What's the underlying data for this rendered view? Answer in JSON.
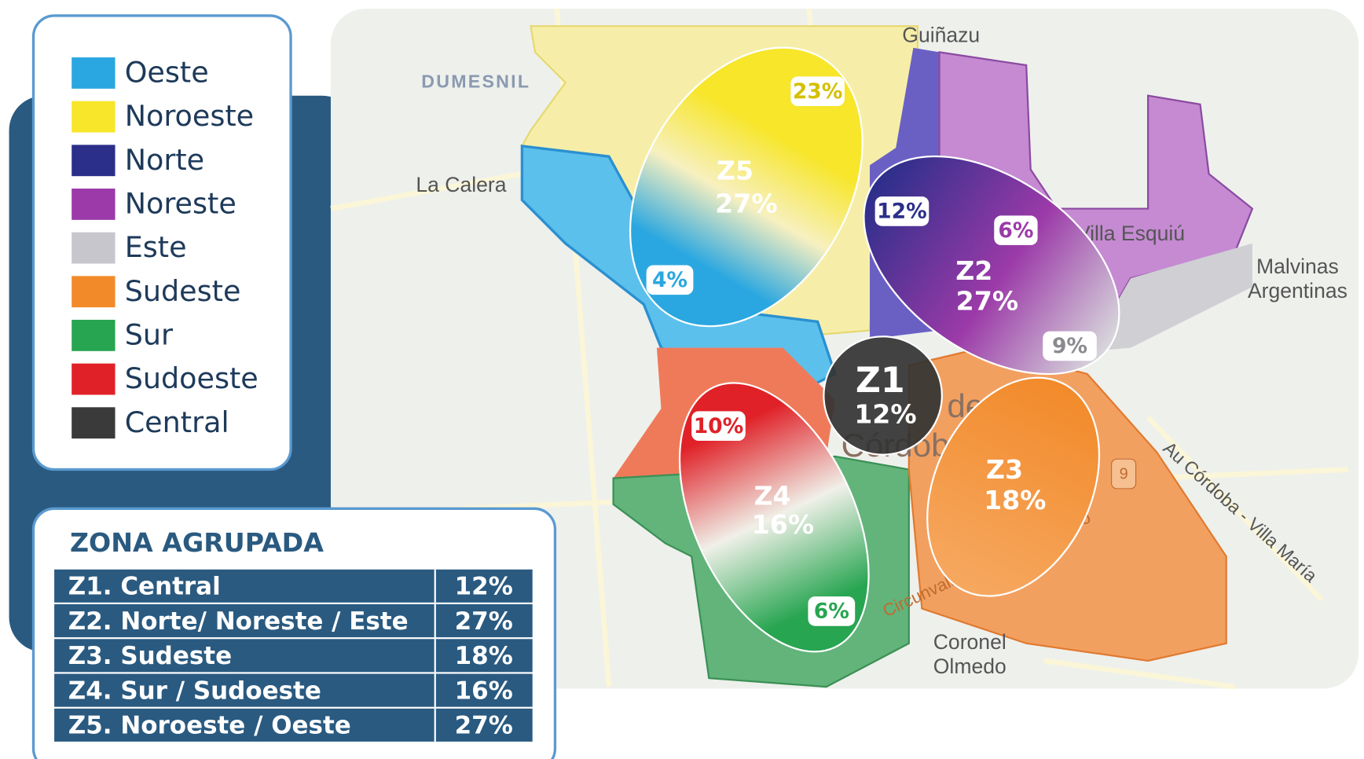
{
  "legend": [
    {
      "label": "Oeste",
      "color": "#2aa7e0"
    },
    {
      "label": "Noroeste",
      "color": "#f7e62a"
    },
    {
      "label": "Norte",
      "color": "#2b2f8a"
    },
    {
      "label": "Noreste",
      "color": "#9b3aa8"
    },
    {
      "label": "Este",
      "color": "#c6c6cc"
    },
    {
      "label": "Sudeste",
      "color": "#f28a2a"
    },
    {
      "label": "Sur",
      "color": "#27a550"
    },
    {
      "label": "Sudoeste",
      "color": "#e02128"
    },
    {
      "label": "Central",
      "color": "#3a3a3a"
    }
  ],
  "map_labels": {
    "guinazu": "Guiñazu",
    "dumesnil": "DUMESNIL",
    "la_calera": "La Calera",
    "villa_esquiu": "Villa Esquiú",
    "malvinas": [
      "Malvinas",
      "Argentinas"
    ],
    "coronel": [
      "Coronel",
      "Olmedo"
    ],
    "autopista": "Au Córdoba - Villa María",
    "circunvalacion": "Circunvalación Agustín Tosco",
    "ciudad": [
      "de",
      "Córdoba"
    ],
    "ruta": "9"
  },
  "zones": [
    {
      "name": "Z1",
      "share": "12%"
    },
    {
      "name": "Z2",
      "share": "27%"
    },
    {
      "name": "Z3",
      "share": "18%"
    },
    {
      "name": "Z4",
      "share": "16%"
    },
    {
      "name": "Z5",
      "share": "27%"
    }
  ],
  "badges": [
    {
      "label": "23%",
      "color": "#d4c000"
    },
    {
      "label": "4%",
      "color": "#2aa7e0"
    },
    {
      "label": "12%",
      "color": "#2b2f8a"
    },
    {
      "label": "6%",
      "color": "#9b3aa8"
    },
    {
      "label": "9%",
      "color": "#8a8a90"
    },
    {
      "label": "10%",
      "color": "#e02128"
    },
    {
      "label": "6%",
      "color": "#27a550"
    }
  ],
  "table": {
    "title": "ZONA AGRUPADA",
    "rows": [
      [
        "Z1. Central",
        "12%"
      ],
      [
        "Z2. Norte/ Noreste / Este",
        "27%"
      ],
      [
        "Z3. Sudeste",
        "18%"
      ],
      [
        "Z4. Sur / Sudoeste",
        "16%"
      ],
      [
        "Z5. Noroeste / Oeste",
        "27%"
      ]
    ]
  }
}
